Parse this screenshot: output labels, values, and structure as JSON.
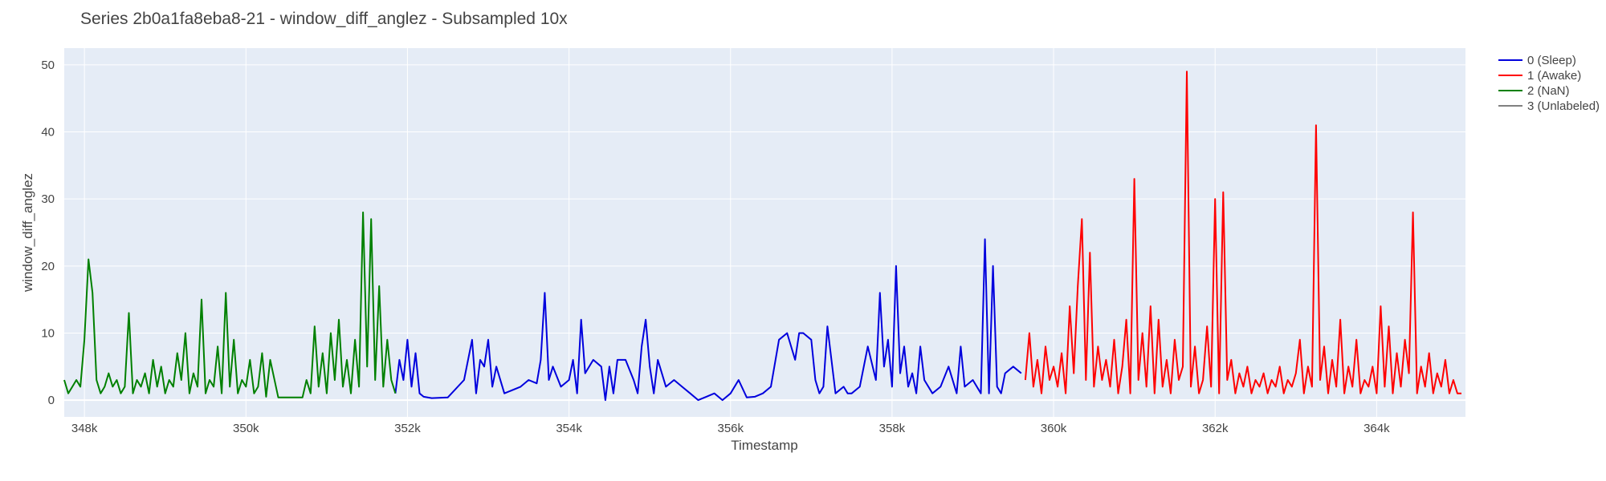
{
  "chart_data": {
    "type": "line",
    "title": "Series 2b0a1fa8eba8-21 - window_diff_anglez - Subsampled 10x",
    "xlabel": "Timestamp",
    "ylabel": "window_diff_anglez",
    "xlim": [
      347750,
      365100
    ],
    "ylim": [
      -2.5,
      52.5
    ],
    "x_ticks": [
      {
        "value": 348000,
        "label": "348k"
      },
      {
        "value": 350000,
        "label": "350k"
      },
      {
        "value": 352000,
        "label": "352k"
      },
      {
        "value": 354000,
        "label": "354k"
      },
      {
        "value": 356000,
        "label": "356k"
      },
      {
        "value": 358000,
        "label": "358k"
      },
      {
        "value": 360000,
        "label": "360k"
      },
      {
        "value": 362000,
        "label": "362k"
      },
      {
        "value": 364000,
        "label": "364k"
      }
    ],
    "y_ticks": [
      {
        "value": 0,
        "label": "0"
      },
      {
        "value": 10,
        "label": "10"
      },
      {
        "value": 20,
        "label": "20"
      },
      {
        "value": 30,
        "label": "30"
      },
      {
        "value": 40,
        "label": "40"
      },
      {
        "value": 50,
        "label": "50"
      }
    ],
    "grid": true,
    "legend_position": "right",
    "series": [
      {
        "name": "0 (Sleep)",
        "color": "#0000dd",
        "x": [
          351850,
          351900,
          351950,
          352000,
          352050,
          352100,
          352150,
          352200,
          352300,
          352500,
          352700,
          352800,
          352850,
          352900,
          352950,
          353000,
          353050,
          353100,
          353200,
          353400,
          353500,
          353600,
          353650,
          353700,
          353750,
          353800,
          353900,
          354000,
          354050,
          354100,
          354150,
          354200,
          354300,
          354400,
          354450,
          354500,
          354550,
          354600,
          354700,
          354800,
          354850,
          354900,
          354950,
          355000,
          355050,
          355100,
          355200,
          355300,
          355400,
          355500,
          355600,
          355700,
          355800,
          355900,
          356000,
          356100,
          356200,
          356300,
          356400,
          356500,
          356600,
          356700,
          356800,
          356850,
          356900,
          357000,
          357050,
          357100,
          357150,
          357200,
          357300,
          357400,
          357450,
          357500,
          357600,
          357700,
          357800,
          357850,
          357900,
          357950,
          358000,
          358050,
          358100,
          358150,
          358200,
          358250,
          358300,
          358350,
          358400,
          358500,
          358600,
          358700,
          358800,
          358850,
          358900,
          359000,
          359100,
          359150,
          359200,
          359250,
          359300,
          359350,
          359400,
          359500,
          359600
        ],
        "y": [
          1,
          6,
          3,
          9,
          2,
          7,
          1,
          0.5,
          0.3,
          0.4,
          3,
          9,
          1,
          6,
          5,
          9,
          2,
          5,
          1,
          2,
          3,
          2.5,
          6,
          16,
          3,
          5,
          2,
          3,
          6,
          1,
          12,
          4,
          6,
          5,
          0,
          5,
          1,
          6,
          6,
          3,
          1,
          8,
          12,
          5,
          1,
          6,
          2,
          3,
          2,
          1,
          0,
          0.5,
          1,
          0,
          1,
          3,
          0.4,
          0.5,
          1,
          2,
          9,
          10,
          6,
          10,
          10,
          9,
          3,
          1,
          2,
          11,
          1,
          2,
          1,
          1,
          2,
          8,
          3,
          16,
          5,
          9,
          2,
          20,
          4,
          8,
          2,
          4,
          1,
          8,
          3,
          1,
          2,
          5,
          1,
          8,
          2,
          3,
          1,
          24,
          1,
          20,
          2,
          1,
          4,
          5,
          4
        ]
      },
      {
        "name": "1 (Awake)",
        "color": "#ff0000",
        "x": [
          359650,
          359700,
          359750,
          359800,
          359850,
          359900,
          359950,
          360000,
          360050,
          360100,
          360150,
          360200,
          360250,
          360300,
          360350,
          360400,
          360450,
          360500,
          360550,
          360600,
          360650,
          360700,
          360750,
          360800,
          360850,
          360900,
          360950,
          361000,
          361050,
          361100,
          361150,
          361200,
          361250,
          361300,
          361350,
          361400,
          361450,
          361500,
          361550,
          361600,
          361650,
          361700,
          361750,
          361800,
          361850,
          361900,
          361950,
          362000,
          362050,
          362100,
          362150,
          362200,
          362250,
          362300,
          362350,
          362400,
          362450,
          362500,
          362550,
          362600,
          362650,
          362700,
          362750,
          362800,
          362850,
          362900,
          362950,
          363000,
          363050,
          363100,
          363150,
          363200,
          363250,
          363300,
          363350,
          363400,
          363450,
          363500,
          363550,
          363600,
          363650,
          363700,
          363750,
          363800,
          363850,
          363900,
          363950,
          364000,
          364050,
          364100,
          364150,
          364200,
          364250,
          364300,
          364350,
          364400,
          364450,
          364500,
          364550,
          364600,
          364650,
          364700,
          364750,
          364800,
          364850,
          364900,
          364950,
          365000,
          365050
        ],
        "y": [
          3,
          10,
          2,
          6,
          1,
          8,
          3,
          5,
          2,
          7,
          1,
          14,
          4,
          17,
          27,
          3,
          22,
          2,
          8,
          3,
          6,
          2,
          9,
          1,
          5,
          12,
          1,
          33,
          3,
          10,
          2,
          14,
          1,
          12,
          2,
          6,
          1,
          9,
          3,
          5,
          49,
          2,
          8,
          1,
          3,
          11,
          2,
          30,
          1,
          31,
          3,
          6,
          1,
          4,
          2,
          5,
          1,
          3,
          2,
          4,
          1,
          3,
          2,
          5,
          1,
          3,
          2,
          4,
          9,
          1,
          5,
          2,
          41,
          3,
          8,
          1,
          6,
          2,
          12,
          1,
          5,
          2,
          9,
          1,
          3,
          2,
          5,
          1,
          14,
          2,
          11,
          1,
          7,
          2,
          9,
          4,
          28,
          1,
          5,
          2,
          7,
          1,
          4,
          2,
          6,
          1,
          3,
          1,
          1
        ]
      },
      {
        "name": "2 (NaN)",
        "color": "#008000",
        "x": [
          347750,
          347800,
          347850,
          347900,
          347950,
          348000,
          348050,
          348100,
          348150,
          348200,
          348250,
          348300,
          348350,
          348400,
          348450,
          348500,
          348550,
          348600,
          348650,
          348700,
          348750,
          348800,
          348850,
          348900,
          348950,
          349000,
          349050,
          349100,
          349150,
          349200,
          349250,
          349300,
          349350,
          349400,
          349450,
          349500,
          349550,
          349600,
          349650,
          349700,
          349750,
          349800,
          349850,
          349900,
          349950,
          350000,
          350050,
          350100,
          350150,
          350200,
          350250,
          350300,
          350400,
          350600,
          350700,
          350750,
          350800,
          350850,
          350900,
          350950,
          351000,
          351050,
          351100,
          351150,
          351200,
          351250,
          351300,
          351350,
          351400,
          351450,
          351500,
          351550,
          351600,
          351650,
          351700,
          351750,
          351800,
          351850
        ],
        "y": [
          3,
          1,
          2,
          3,
          2,
          9,
          21,
          16,
          3,
          1,
          2,
          4,
          2,
          3,
          1,
          2,
          13,
          1,
          3,
          2,
          4,
          1,
          6,
          2,
          5,
          1,
          3,
          2,
          7,
          3,
          10,
          1,
          4,
          2,
          15,
          1,
          3,
          2,
          8,
          1,
          16,
          2,
          9,
          1,
          3,
          2,
          6,
          1,
          2,
          7,
          0.5,
          6,
          0.4,
          0.4,
          0.4,
          3,
          1,
          11,
          2,
          7,
          1,
          10,
          3,
          12,
          2,
          6,
          1,
          9,
          2,
          28,
          5,
          27,
          3,
          17,
          2,
          9,
          3,
          1
        ]
      },
      {
        "name": "3 (Unlabeled)",
        "color": "#808080",
        "x": [],
        "y": []
      }
    ]
  }
}
